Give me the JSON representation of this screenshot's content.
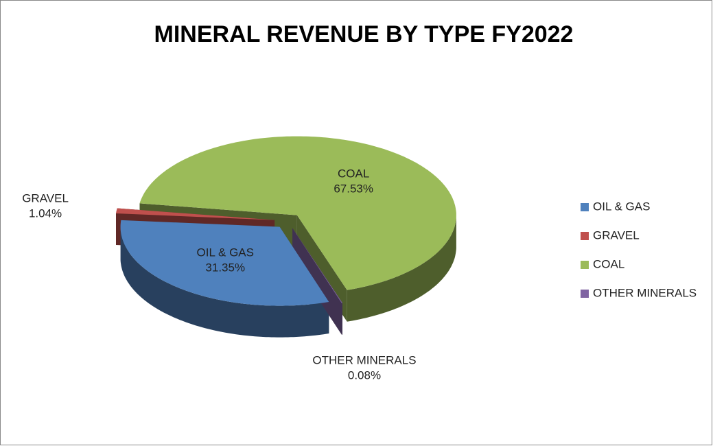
{
  "chart_data": {
    "type": "pie3d",
    "title": "MINERAL REVENUE BY TYPE FY2022",
    "categories": [
      "OIL & GAS",
      "GRAVEL",
      "COAL",
      "OTHER MINERALS"
    ],
    "values": [
      31.35,
      1.04,
      67.53,
      0.08
    ],
    "value_labels": [
      "31.35%",
      "1.04%",
      "67.53%",
      "0.08%"
    ],
    "colors": [
      "#4f81bd",
      "#c0504d",
      "#9bbb59",
      "#8064a2"
    ],
    "legend": "right"
  }
}
